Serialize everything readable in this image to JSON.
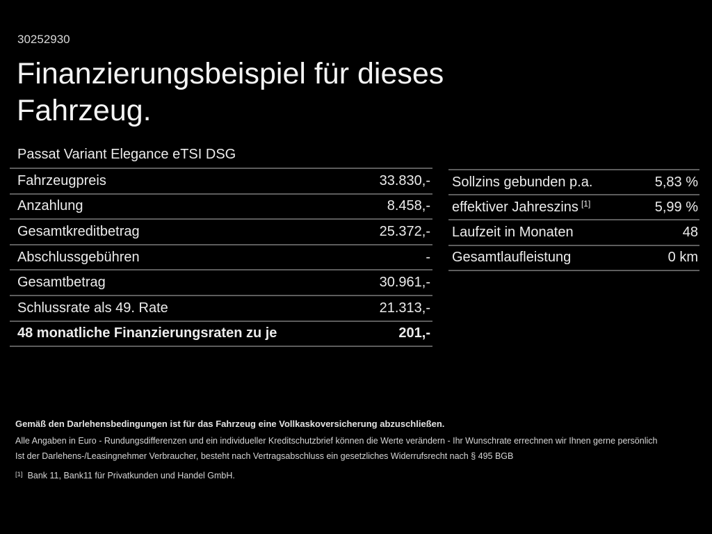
{
  "page": {
    "listing_id": "30252930",
    "title_line1": "Finanzierungsbeispiel für dieses",
    "title_line2": "Fahrzeug.",
    "vehicle_name": "Passat Variant Elegance eTSI DSG"
  },
  "finance_table": {
    "rows": [
      {
        "label": "Fahrzeugpreis",
        "value": "33.830,-"
      },
      {
        "label": "Anzahlung",
        "value": "8.458,-"
      },
      {
        "label": "Gesamtkreditbetrag",
        "value": "25.372,-"
      },
      {
        "label": "Abschlussgebühren",
        "value": "-"
      },
      {
        "label": "Gesamtbetrag",
        "value": "30.961,-"
      },
      {
        "label": "Schlussrate als 49. Rate",
        "value": "21.313,-"
      },
      {
        "label": "48 monatliche Finanzierungsraten zu je",
        "value": "201,-"
      }
    ]
  },
  "conditions_table": {
    "rows": [
      {
        "label": "Sollzins gebunden p.a.",
        "value": "5,83 %"
      },
      {
        "label": "effektiver Jahreszins",
        "sup": "[1]",
        "value": "5,99 %"
      },
      {
        "label": "Laufzeit in Monaten",
        "value": "48"
      },
      {
        "label": "Gesamtlaufleistung",
        "value": "0 km"
      }
    ]
  },
  "footer": {
    "insurance_note": "Gemäß den Darlehensbedingungen ist für das Fahrzeug eine Vollkaskoversicherung abzuschließen.",
    "disclaimer_line1": "Alle Angaben in Euro - Rundungsdifferenzen und ein individueller Kreditschutzbrief können die Werte verändern - Ihr Wunschrate errechnen wir Ihnen gerne persönlich",
    "disclaimer_line2": "Ist der Darlehens-/Leasingnehmer Verbraucher, besteht nach Vertragsabschluss ein gesetzliches Widerrufsrecht nach § 495 BGB",
    "footnote_marker": "[1]",
    "footnote_text": "Bank 11, Bank11 für Privatkunden und Handel GmbH."
  },
  "colors": {
    "background": "#000000",
    "text_primary": "#ececec",
    "divider": "#5d5d5d"
  }
}
